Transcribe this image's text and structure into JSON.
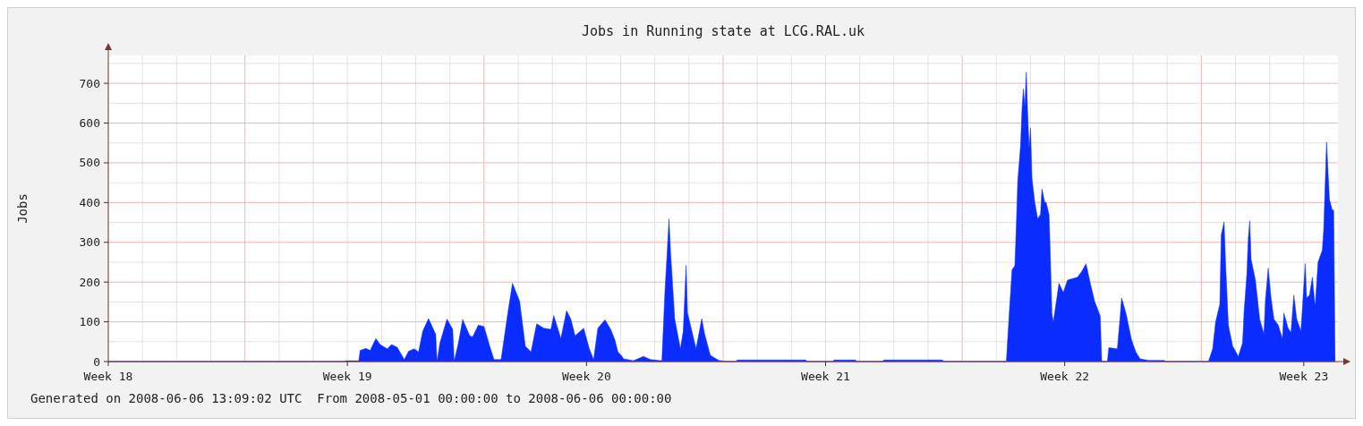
{
  "chart_data": {
    "type": "area",
    "title": "Jobs in Running state at LCG.RAL.uk",
    "ylabel": "Jobs",
    "annotations": [
      "Generated on 2008-06-06 13:09:02 UTC  From 2008-05-01 00:00:00 to 2008-06-06 00:00:00"
    ],
    "xlim": [
      "2008-05-01",
      "2008-06-06"
    ],
    "ylim": [
      0,
      770
    ],
    "xticks": [
      {
        "value": "2008-05-01",
        "label": "Week 18"
      },
      {
        "value": "2008-05-02",
        "label": null
      },
      {
        "value": "2008-05-03",
        "label": null
      },
      {
        "value": "2008-05-04",
        "label": null
      },
      {
        "value": "2008-05-05",
        "label": null
      },
      {
        "value": "2008-05-06",
        "label": null
      },
      {
        "value": "2008-05-07",
        "label": null
      },
      {
        "value": "2008-05-08",
        "label": "Week 19"
      },
      {
        "value": "2008-05-09",
        "label": null
      },
      {
        "value": "2008-05-10",
        "label": null
      },
      {
        "value": "2008-05-11",
        "label": null
      },
      {
        "value": "2008-05-12",
        "label": null
      },
      {
        "value": "2008-05-13",
        "label": null
      },
      {
        "value": "2008-05-14",
        "label": null
      },
      {
        "value": "2008-05-15",
        "label": "Week 20"
      },
      {
        "value": "2008-05-16",
        "label": null
      },
      {
        "value": "2008-05-17",
        "label": null
      },
      {
        "value": "2008-05-18",
        "label": null
      },
      {
        "value": "2008-05-19",
        "label": null
      },
      {
        "value": "2008-05-20",
        "label": null
      },
      {
        "value": "2008-05-21",
        "label": null
      },
      {
        "value": "2008-05-22",
        "label": "Week 21"
      },
      {
        "value": "2008-05-23",
        "label": null
      },
      {
        "value": "2008-05-24",
        "label": null
      },
      {
        "value": "2008-05-25",
        "label": null
      },
      {
        "value": "2008-05-26",
        "label": null
      },
      {
        "value": "2008-05-27",
        "label": null
      },
      {
        "value": "2008-05-28",
        "label": null
      },
      {
        "value": "2008-05-29",
        "label": "Week 22"
      },
      {
        "value": "2008-05-30",
        "label": null
      },
      {
        "value": "2008-05-31",
        "label": null
      },
      {
        "value": "2008-06-01",
        "label": null
      },
      {
        "value": "2008-06-02",
        "label": null
      },
      {
        "value": "2008-06-03",
        "label": null
      },
      {
        "value": "2008-06-04",
        "label": null
      },
      {
        "value": "2008-06-05",
        "label": "Week 23"
      }
    ],
    "yticks": [
      0,
      {
        "value": 50,
        "label": null
      },
      100,
      {
        "value": 150,
        "label": null
      },
      200,
      {
        "value": 250,
        "label": null
      },
      300,
      {
        "value": 350,
        "label": null
      },
      400,
      {
        "value": 450,
        "label": null
      },
      500,
      {
        "value": 550,
        "label": null
      },
      600,
      {
        "value": 650,
        "label": null
      },
      700,
      {
        "value": 750,
        "label": null
      }
    ],
    "grid": true,
    "series": [
      {
        "color": "#0a2cff",
        "x": [
          "2008-05-01T00:00",
          "2008-05-07T22:00",
          "2008-05-07T23:00",
          "2008-05-08T08:00",
          "2008-05-08T09:00",
          "2008-05-08T13:00",
          "2008-05-08T16:00",
          "2008-05-08T20:00",
          "2008-05-08T23:00",
          "2008-05-09T04:00",
          "2008-05-09T07:00",
          "2008-05-09T11:00",
          "2008-05-09T16:00",
          "2008-05-09T19:00",
          "2008-05-09T23:00",
          "2008-05-10T02:00",
          "2008-05-10T05:00",
          "2008-05-10T09:00",
          "2008-05-10T14:00",
          "2008-05-10T15:00",
          "2008-05-10T17:00",
          "2008-05-10T22:00",
          "2008-05-11T02:00",
          "2008-05-11T03:00",
          "2008-05-11T06:00",
          "2008-05-11T09:00",
          "2008-05-11T14:00",
          "2008-05-11T16:00",
          "2008-05-11T20:00",
          "2008-05-12T00:00",
          "2008-05-12T04:00",
          "2008-05-12T07:00",
          "2008-05-12T12:00",
          "2008-05-12T17:00",
          "2008-05-12T20:00",
          "2008-05-13T01:00",
          "2008-05-13T05:00",
          "2008-05-13T09:00",
          "2008-05-13T13:00",
          "2008-05-13T18:00",
          "2008-05-13T23:00",
          "2008-05-14T01:00",
          "2008-05-14T06:00",
          "2008-05-14T10:00",
          "2008-05-14T13:00",
          "2008-05-14T16:00",
          "2008-05-14T22:00",
          "2008-05-15T02:00",
          "2008-05-15T05:00",
          "2008-05-15T08:00",
          "2008-05-15T13:00",
          "2008-05-15T17:00",
          "2008-05-15T20:00",
          "2008-05-15T22:00",
          "2008-05-16T01:00",
          "2008-05-16T02:00",
          "2008-05-16T09:00",
          "2008-05-16T16:00",
          "2008-05-16T21:00",
          "2008-05-17T05:00",
          "2008-05-17T07:00",
          "2008-05-17T10:00",
          "2008-05-17T11:00",
          "2008-05-17T14:00",
          "2008-05-17T18:00",
          "2008-05-17T20:00",
          "2008-05-17T22:00",
          "2008-05-17T23:00",
          "2008-05-18T05:00",
          "2008-05-18T09:00",
          "2008-05-18T11:00",
          "2008-05-18T15:00",
          "2008-05-18T21:00",
          "2008-05-19T03:00",
          "2008-05-19T09:00",
          "2008-05-19T10:00",
          "2008-05-21T10:00",
          "2008-05-21T11:00",
          "2008-05-22T05:00",
          "2008-05-22T06:00",
          "2008-05-22T21:00",
          "2008-05-22T22:00",
          "2008-05-23T16:00",
          "2008-05-23T17:00",
          "2008-05-25T10:00",
          "2008-05-25T11:00",
          "2008-05-27T07:00",
          "2008-05-27T09:00",
          "2008-05-27T11:00",
          "2008-05-27T13:00",
          "2008-05-27T14:00",
          "2008-05-27T15:00",
          "2008-05-27T17:00",
          "2008-05-27T18:00",
          "2008-05-27T19:00",
          "2008-05-27T20:00",
          "2008-05-27T21:00",
          "2008-05-27T22:00",
          "2008-05-27T23:00",
          "2008-05-28T00:00",
          "2008-05-28T01:00",
          "2008-05-28T03:00",
          "2008-05-28T05:00",
          "2008-05-28T07:00",
          "2008-05-28T08:00",
          "2008-05-28T10:00",
          "2008-05-28T11:00",
          "2008-05-28T13:00",
          "2008-05-28T14:00",
          "2008-05-28T15:00",
          "2008-05-28T16:00",
          "2008-05-28T20:00",
          "2008-05-28T23:00",
          "2008-05-29T02:00",
          "2008-05-29T05:00",
          "2008-05-29T09:00",
          "2008-05-29T12:00",
          "2008-05-29T15:00",
          "2008-05-29T18:00",
          "2008-05-29T21:00",
          "2008-05-30T01:00",
          "2008-05-30T02:00",
          "2008-05-30T06:00",
          "2008-05-30T07:00",
          "2008-05-30T13:00",
          "2008-05-30T15:00",
          "2008-05-30T16:00",
          "2008-05-30T19:00",
          "2008-05-30T23:00",
          "2008-05-31T02:00",
          "2008-05-31T05:00",
          "2008-05-31T11:00",
          "2008-05-31T22:00",
          "2008-05-31T23:00",
          "2008-06-02T05:00",
          "2008-06-02T08:00",
          "2008-06-02T10:00",
          "2008-06-02T13:00",
          "2008-06-02T14:00",
          "2008-06-02T16:00",
          "2008-06-02T17:00",
          "2008-06-02T19:00",
          "2008-06-02T22:00",
          "2008-06-03T02:00",
          "2008-06-03T05:00",
          "2008-06-03T06:00",
          "2008-06-03T08:00",
          "2008-06-03T09:00",
          "2008-06-03T10:00",
          "2008-06-03T11:00",
          "2008-06-03T14:00",
          "2008-06-03T17:00",
          "2008-06-03T20:00",
          "2008-06-03T21:00",
          "2008-06-03T23:00",
          "2008-06-04T01:00",
          "2008-06-04T03:00",
          "2008-06-04T06:00",
          "2008-06-04T09:00",
          "2008-06-04T10:00",
          "2008-06-04T13:00",
          "2008-06-04T15:00",
          "2008-06-04T17:00",
          "2008-06-04T19:00",
          "2008-06-04T22:00",
          "2008-06-05T01:00",
          "2008-06-05T02:00",
          "2008-06-05T04:00",
          "2008-06-05T06:00",
          "2008-06-05T08:00",
          "2008-06-05T10:00",
          "2008-06-05T13:00",
          "2008-06-05T14:00",
          "2008-06-05T16:00",
          "2008-06-05T18:00",
          "2008-06-05T20:00",
          "2008-06-05T21:00",
          "2008-06-05T22:00"
        ],
        "values": [
          0,
          0,
          2,
          2,
          28,
          33,
          28,
          58,
          43,
          32,
          43,
          36,
          5,
          26,
          32,
          24,
          77,
          108,
          69,
          0,
          47,
          107,
          81,
          0,
          47,
          106,
          65,
          62,
          92,
          88,
          39,
          5,
          5,
          129,
          197,
          152,
          39,
          24,
          95,
          84,
          81,
          116,
          58,
          128,
          107,
          65,
          84,
          32,
          5,
          84,
          105,
          81,
          54,
          25,
          13,
          7,
          2,
          13,
          5,
          2,
          167,
          359,
          280,
          107,
          32,
          77,
          242,
          122,
          32,
          108,
          69,
          16,
          3,
          0,
          0,
          4,
          4,
          0,
          0,
          4,
          4,
          0,
          0,
          4,
          4,
          0,
          0,
          118,
          231,
          241,
          340,
          453,
          543,
          634,
          686,
          641,
          728,
          626,
          536,
          588,
          461,
          400,
          359,
          370,
          434,
          400,
          400,
          370,
          257,
          122,
          99,
          197,
          174,
          205,
          208,
          212,
          227,
          246,
          197,
          152,
          114,
          0,
          0,
          35,
          32,
          114,
          160,
          122,
          54,
          24,
          7,
          3,
          3,
          0,
          0,
          32,
          99,
          144,
          318,
          352,
          250,
          92,
          39,
          13,
          47,
          122,
          220,
          310,
          354,
          257,
          205,
          107,
          69,
          152,
          235,
          160,
          107,
          92,
          58,
          122,
          84,
          73,
          167,
          107,
          77,
          246,
          160,
          167,
          212,
          137,
          250,
          280,
          332,
          552,
          408,
          381,
          381,
          0
        ]
      }
    ]
  }
}
